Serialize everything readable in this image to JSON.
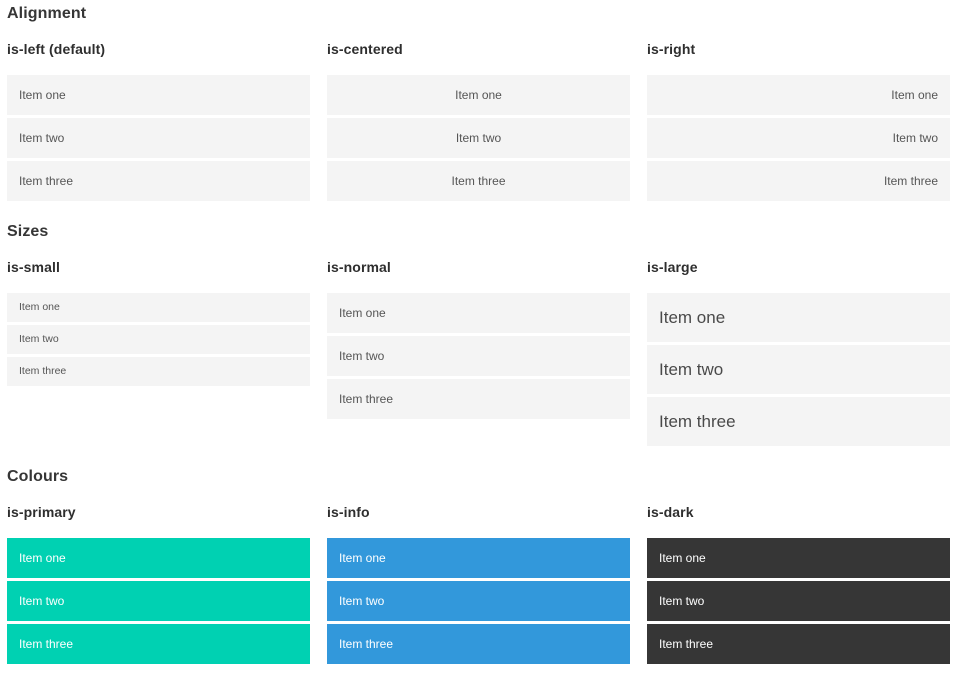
{
  "theme": {
    "page-bg": "#ffffff",
    "item-bg": "#f4f4f4",
    "item-text": "#555555",
    "heading-text": "#363636",
    "primary": "#00d1b2",
    "info": "#3298db",
    "dark": "#363636",
    "colored-text": "#ffffff"
  },
  "items": [
    "Item one",
    "Item two",
    "Item three"
  ],
  "sections": [
    {
      "title": "Alignment",
      "columns": [
        {
          "label": "is-left (default)"
        },
        {
          "label": "is-centered"
        },
        {
          "label": "is-right"
        }
      ]
    },
    {
      "title": "Sizes",
      "columns": [
        {
          "label": "is-small"
        },
        {
          "label": "is-normal"
        },
        {
          "label": "is-large"
        }
      ]
    },
    {
      "title": "Colours",
      "columns": [
        {
          "label": "is-primary"
        },
        {
          "label": "is-info"
        },
        {
          "label": "is-dark"
        }
      ]
    }
  ]
}
